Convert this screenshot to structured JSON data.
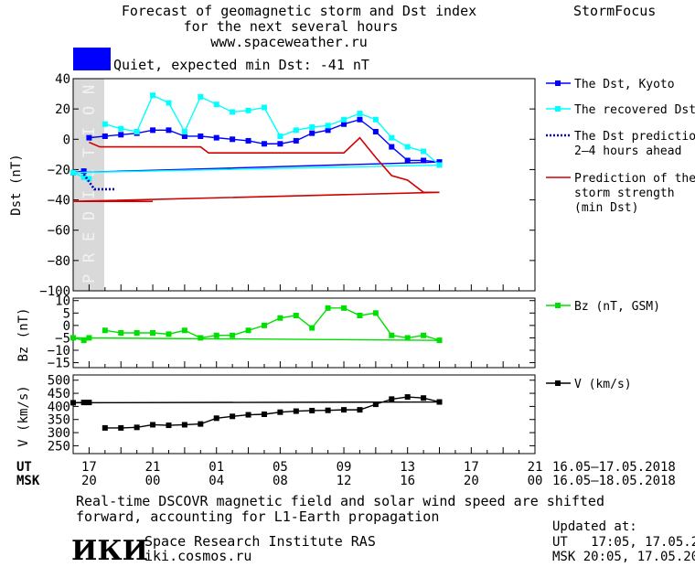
{
  "header": {
    "title_line1": "Forecast of geomagnetic storm and Dst index",
    "title_line2": "for the next several hours",
    "url": "www.spaceweather.ru",
    "brand": "StormFocus"
  },
  "status": {
    "text": "Quiet, expected min Dst: -41 nT",
    "color": "#0000ff"
  },
  "prediction_band_text": "PREDICTION",
  "chart_data": [
    {
      "type": "line",
      "ylabel": "Dst (nT)",
      "ylim": [
        -100,
        40
      ],
      "yticks": [
        "40",
        "20",
        "0",
        "−20",
        "−40",
        "−60",
        "−80",
        "−100"
      ],
      "ytick_values": [
        40,
        20,
        0,
        -20,
        -40,
        -60,
        -80,
        -100
      ],
      "x_hours_range": [
        16,
        21
      ],
      "prediction_band_hours": [
        16,
        17.95
      ],
      "series": [
        {
          "name": "The Dst, Kyoto",
          "color": "#0000ff",
          "marker": "square",
          "points": [
            [
              17,
              1
            ],
            [
              18,
              2
            ],
            [
              19,
              3
            ],
            [
              20,
              4
            ],
            [
              21,
              6
            ],
            [
              22,
              6
            ],
            [
              23,
              2
            ],
            [
              0,
              2
            ],
            [
              1,
              1
            ],
            [
              2,
              0
            ],
            [
              3,
              -1
            ],
            [
              4,
              -3
            ],
            [
              5,
              -3
            ],
            [
              6,
              -1
            ],
            [
              7,
              4
            ],
            [
              8,
              6
            ],
            [
              9,
              10
            ],
            [
              10,
              13
            ],
            [
              11,
              5
            ],
            [
              12,
              -5
            ],
            [
              13,
              -14
            ],
            [
              14,
              -14
            ],
            [
              15,
              -15
            ],
            [
              16,
              -22
            ],
            [
              16.67,
              -21
            ]
          ]
        },
        {
          "name": "The recovered Dst",
          "color": "#00ffff",
          "marker": "square",
          "points": [
            [
              18,
              10
            ],
            [
              19,
              7
            ],
            [
              20,
              5
            ],
            [
              21,
              29
            ],
            [
              22,
              24
            ],
            [
              23,
              5
            ],
            [
              0,
              28
            ],
            [
              1,
              23
            ],
            [
              2,
              18
            ],
            [
              3,
              19
            ],
            [
              4,
              21
            ],
            [
              5,
              2
            ],
            [
              6,
              6
            ],
            [
              7,
              8
            ],
            [
              8,
              9
            ],
            [
              9,
              13
            ],
            [
              10,
              17
            ],
            [
              11,
              13
            ],
            [
              12,
              1
            ],
            [
              13,
              -5
            ],
            [
              14,
              -8
            ],
            [
              15,
              -17
            ],
            [
              16,
              -22
            ],
            [
              16.67,
              -25
            ],
            [
              17,
              -26
            ]
          ]
        },
        {
          "name": "The Dst prediction\n2–4 hours ahead",
          "color": "#0000c0",
          "style": "dotted",
          "points": [
            [
              16.67,
              -23
            ],
            [
              17.33,
              -33
            ],
            [
              18.67,
              -33
            ]
          ]
        },
        {
          "name": "Prediction of the\nstorm strength\n(min Dst)",
          "color": "#d00000",
          "style": "step",
          "points": [
            [
              17,
              -2
            ],
            [
              17.67,
              -5
            ],
            [
              0,
              -5
            ],
            [
              0.5,
              -9
            ],
            [
              9,
              -9
            ],
            [
              10,
              1
            ],
            [
              11,
              -12
            ],
            [
              12,
              -24
            ],
            [
              13,
              -27
            ],
            [
              14,
              -35
            ],
            [
              15,
              -35
            ],
            [
              16,
              -41
            ],
            [
              21,
              -41
            ]
          ]
        }
      ]
    },
    {
      "type": "line",
      "ylabel": "Bz (nT)",
      "ylim": [
        -17,
        11
      ],
      "yticks": [
        "10",
        "5",
        "0",
        "−5",
        "−10",
        "−15"
      ],
      "ytick_values": [
        10,
        5,
        0,
        -5,
        -10,
        -15
      ],
      "series": [
        {
          "name": "Bz (nT, GSM)",
          "color": "#00e000",
          "marker": "square",
          "points": [
            [
              18,
              -2
            ],
            [
              19,
              -3
            ],
            [
              20,
              -3
            ],
            [
              21,
              -3
            ],
            [
              22,
              -3.5
            ],
            [
              23,
              -2
            ],
            [
              0,
              -5
            ],
            [
              1,
              -4
            ],
            [
              2,
              -4
            ],
            [
              3,
              -2
            ],
            [
              4,
              0
            ],
            [
              5,
              3
            ],
            [
              6,
              4
            ],
            [
              7,
              -1
            ],
            [
              8,
              7
            ],
            [
              9,
              7
            ],
            [
              10,
              4
            ],
            [
              11,
              5
            ],
            [
              12,
              -4
            ],
            [
              13,
              -5
            ],
            [
              14,
              -4
            ],
            [
              15,
              -6
            ],
            [
              16,
              -5
            ],
            [
              16.67,
              -6
            ],
            [
              17,
              -5
            ]
          ]
        }
      ]
    },
    {
      "type": "line",
      "ylabel": "V (km/s)",
      "ylim": [
        220,
        520
      ],
      "yticks": [
        "500",
        "450",
        "400",
        "350",
        "300",
        "250"
      ],
      "ytick_values": [
        500,
        450,
        400,
        350,
        300,
        250
      ],
      "series": [
        {
          "name": "V (km/s)",
          "color": "#000000",
          "marker": "square",
          "points": [
            [
              18,
              318
            ],
            [
              19,
              318
            ],
            [
              20,
              320
            ],
            [
              21,
              330
            ],
            [
              22,
              328
            ],
            [
              23,
              330
            ],
            [
              0,
              333
            ],
            [
              1,
              355
            ],
            [
              2,
              362
            ],
            [
              3,
              368
            ],
            [
              4,
              370
            ],
            [
              5,
              378
            ],
            [
              6,
              382
            ],
            [
              7,
              384
            ],
            [
              8,
              385
            ],
            [
              9,
              387
            ],
            [
              10,
              387
            ],
            [
              11,
              408
            ],
            [
              12,
              428
            ],
            [
              13,
              436
            ],
            [
              14,
              432
            ],
            [
              15,
              417
            ],
            [
              16,
              414
            ],
            [
              16.67,
              415
            ],
            [
              17,
              415
            ]
          ]
        }
      ]
    }
  ],
  "xaxis": {
    "ut_label": "UT",
    "msk_label": "MSK",
    "ut_ticks": [
      "17",
      "21",
      "01",
      "05",
      "09",
      "13",
      "17",
      "21"
    ],
    "msk_ticks": [
      "20",
      "00",
      "04",
      "08",
      "12",
      "16",
      "20",
      "00"
    ],
    "ut_range": "16.05–17.05.2018",
    "msk_range": "16.05–18.05.2018"
  },
  "footer": {
    "note_line1": "Real-time DSCOVR magnetic field and solar wind speed are shifted",
    "note_line2": "forward, accounting for L1-Earth propagation",
    "logo_text": "ИКИ",
    "institute": "Space Research Institute RAS",
    "site": "iki.cosmos.ru",
    "updated_label": "Updated at:",
    "updated_ut": "UT   17:05, 17.05.2018",
    "updated_msk": "MSK 20:05, 17.05.2018"
  }
}
